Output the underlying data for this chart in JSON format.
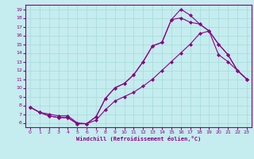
{
  "xlabel": "Windchill (Refroidissement éolien,°C)",
  "bg_color": "#c5ecee",
  "line_color": "#880088",
  "grid_color": "#aadddd",
  "xlim": [
    -0.5,
    23.5
  ],
  "ylim": [
    5.5,
    19.5
  ],
  "yticks": [
    6,
    7,
    8,
    9,
    10,
    11,
    12,
    13,
    14,
    15,
    16,
    17,
    18,
    19
  ],
  "xticks": [
    0,
    1,
    2,
    3,
    4,
    5,
    6,
    7,
    8,
    9,
    10,
    11,
    12,
    13,
    14,
    15,
    16,
    17,
    18,
    19,
    20,
    21,
    22,
    23
  ],
  "curve1_x": [
    0,
    1,
    2,
    3,
    4,
    5,
    6,
    7,
    8,
    9,
    10,
    11,
    12,
    13,
    14,
    15,
    16,
    17,
    18,
    19,
    20,
    21,
    22,
    23
  ],
  "curve1_y": [
    7.8,
    7.2,
    6.8,
    6.6,
    6.6,
    5.9,
    5.9,
    6.7,
    8.8,
    10.0,
    10.5,
    11.5,
    13.0,
    14.8,
    15.2,
    17.8,
    18.0,
    17.5,
    17.3,
    16.5,
    15.0,
    13.8,
    12.0,
    11.0
  ],
  "curve2_x": [
    0,
    1,
    2,
    3,
    4,
    5,
    6,
    7,
    8,
    9,
    10,
    11,
    12,
    13,
    14,
    15,
    16,
    17,
    18,
    19,
    20,
    21,
    22,
    23
  ],
  "curve2_y": [
    7.8,
    7.2,
    6.8,
    6.6,
    6.6,
    5.9,
    5.9,
    6.7,
    8.8,
    10.0,
    10.5,
    11.5,
    13.0,
    14.8,
    15.2,
    17.8,
    19.0,
    18.3,
    17.3,
    16.5,
    13.8,
    13.0,
    12.0,
    11.0
  ],
  "curve3_x": [
    0,
    1,
    2,
    3,
    4,
    5,
    6,
    7,
    8,
    9,
    10,
    11,
    12,
    13,
    14,
    15,
    16,
    17,
    18,
    19,
    20,
    21,
    22,
    23
  ],
  "curve3_y": [
    7.8,
    7.2,
    7.0,
    6.8,
    6.8,
    6.0,
    5.9,
    6.3,
    7.5,
    8.5,
    9.0,
    9.5,
    10.2,
    11.0,
    12.0,
    13.0,
    14.0,
    15.0,
    16.2,
    16.5,
    15.0,
    13.8,
    12.0,
    11.0
  ]
}
